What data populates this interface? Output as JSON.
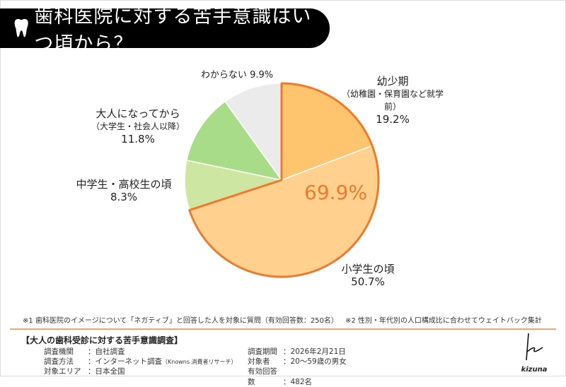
{
  "title": "歯科医院に対する苦手意識はいつ頃から？",
  "chart_data": {
    "type": "pie",
    "start_angle": "12 o'clock, clockwise",
    "slices": [
      {
        "label": "幼少期",
        "sublabel": "（幼稚園・保育園など就学前）",
        "value": 19.2,
        "value_label": "19.2%",
        "color": "#FFC46E"
      },
      {
        "label": "小学生の頃",
        "sublabel": "",
        "value": 50.7,
        "value_label": "50.7%",
        "color": "#FFD08E"
      },
      {
        "label": "中学生・高校生の頃",
        "sublabel": "",
        "value": 8.3,
        "value_label": "8.3%",
        "color": "#CDE6A2"
      },
      {
        "label": "大人になってから",
        "sublabel": "（大学生・社会人以降）",
        "value": 11.8,
        "value_label": "11.8%",
        "color": "#A8DC88"
      },
      {
        "label": "わからない",
        "sublabel": "",
        "value": 9.9,
        "value_label": "9.9%",
        "color": "#EBEBEB"
      }
    ],
    "highlight": {
      "label": "69.9%",
      "value": 69.9,
      "color": "#EE7A2E"
    }
  },
  "notes": {
    "note1": "※1 歯科医院のイメージについて「ネガティブ」と回答した人を対象に質問（有効回答数：250名）",
    "note2": "※2 性別・年代別の人口構成比に合わせてウェイトバック集計"
  },
  "survey": {
    "title": "【大人の歯科受診に対する苦手意識調査】",
    "left": [
      {
        "key": "調査機関",
        "value": "：自社調査"
      },
      {
        "key": "調査方法",
        "value": "：インターネット調査",
        "extra": "（Knowns 消費者リサーチ）"
      },
      {
        "key": "対象エリア",
        "value": "：日本全国"
      }
    ],
    "right": [
      {
        "key": "調査期間",
        "value": "：2026年2月21日"
      },
      {
        "key": "対象者",
        "value": "：20～59歳の男女"
      },
      {
        "key": "有効回答数",
        "value": "：482名"
      }
    ]
  },
  "logo": "kizuna"
}
